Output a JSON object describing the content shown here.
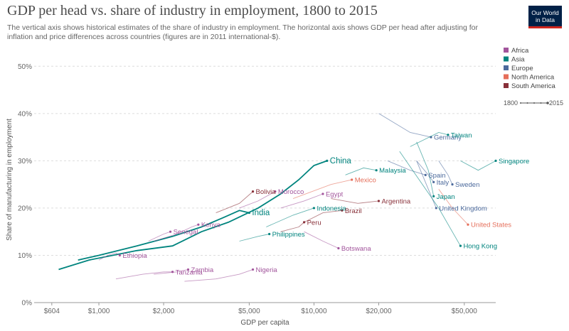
{
  "header": {
    "title": "GDP per head vs. share of industry in employment, 1800 to 2015",
    "subtitle": "The vertical axis shows historical estimates of the share of industry in employment. The horizontal axis shows GDP per head after adjusting for inflation and price differences across countries (figures are in 2011 international-$).",
    "logo_line1": "Our World",
    "logo_line2": "in Data"
  },
  "legend": {
    "items": [
      {
        "label": "Africa",
        "color": "#a2559c"
      },
      {
        "label": "Asia",
        "color": "#00847e"
      },
      {
        "label": "Europe",
        "color": "#4c6a9c"
      },
      {
        "label": "North America",
        "color": "#e56e5a"
      },
      {
        "label": "South America",
        "color": "#883039"
      }
    ],
    "time_start": "1800",
    "time_end": "2015"
  },
  "chart_data": {
    "type": "scatter",
    "xlabel": "GDP per capita",
    "ylabel": "Share of manufacturing in employment",
    "xscale": "log",
    "xlim": [
      500,
      70000
    ],
    "ylim": [
      0,
      52
    ],
    "xticks": [
      {
        "value": 604,
        "label": "$604"
      },
      {
        "value": 1000,
        "label": "$1,000"
      },
      {
        "value": 2000,
        "label": "$2,000"
      },
      {
        "value": 5000,
        "label": "$5,000"
      },
      {
        "value": 10000,
        "label": "$10,000"
      },
      {
        "value": 20000,
        "label": "$20,000"
      },
      {
        "value": 50000,
        "label": "$50,000"
      }
    ],
    "yticks": [
      {
        "value": 0,
        "label": "0%"
      },
      {
        "value": 10,
        "label": "10%"
      },
      {
        "value": 20,
        "label": "20%"
      },
      {
        "value": 30,
        "label": "30%"
      },
      {
        "value": 40,
        "label": "40%"
      },
      {
        "value": 50,
        "label": "50%"
      }
    ],
    "grid": "horizontal dashed",
    "legend_position": "right",
    "series": [
      {
        "name": "China",
        "region": "Asia",
        "values": [
          [
            650,
            7
          ],
          [
            900,
            9
          ],
          [
            1500,
            11
          ],
          [
            2200,
            12
          ],
          [
            3000,
            15
          ],
          [
            4000,
            17
          ],
          [
            5500,
            20
          ],
          [
            7000,
            23
          ],
          [
            8500,
            26
          ],
          [
            10000,
            29
          ],
          [
            11500,
            30
          ]
        ]
      },
      {
        "name": "India",
        "region": "Asia",
        "values": [
          [
            800,
            9
          ],
          [
            1000,
            10
          ],
          [
            1500,
            12
          ],
          [
            2200,
            14
          ],
          [
            3000,
            16
          ],
          [
            3800,
            18
          ],
          [
            4500,
            19.5
          ],
          [
            5000,
            19
          ]
        ]
      },
      {
        "name": "Ethiopia",
        "region": "Africa",
        "values": [
          [
            1000,
            9
          ],
          [
            1100,
            10
          ],
          [
            1200,
            10.5
          ],
          [
            1250,
            10
          ]
        ]
      },
      {
        "name": "Kenya",
        "region": "Africa",
        "values": [
          [
            1800,
            13
          ],
          [
            2300,
            14.5
          ],
          [
            2700,
            16
          ],
          [
            2900,
            16.5
          ]
        ]
      },
      {
        "name": "Senegal",
        "region": "Africa",
        "values": [
          [
            1700,
            13
          ],
          [
            2000,
            14.5
          ],
          [
            2150,
            15
          ]
        ]
      },
      {
        "name": "Tanzania",
        "region": "Africa",
        "values": [
          [
            1200,
            5
          ],
          [
            1600,
            6
          ],
          [
            2000,
            6.5
          ],
          [
            2200,
            6.5
          ]
        ]
      },
      {
        "name": "Zambia",
        "region": "Africa",
        "values": [
          [
            1800,
            6
          ],
          [
            2300,
            6.5
          ],
          [
            2600,
            7
          ]
        ]
      },
      {
        "name": "Nigeria",
        "region": "Africa",
        "values": [
          [
            2500,
            4.5
          ],
          [
            3500,
            5
          ],
          [
            4500,
            6
          ],
          [
            5200,
            7
          ]
        ]
      },
      {
        "name": "Bolivia",
        "region": "South America",
        "values": [
          [
            3500,
            19
          ],
          [
            4500,
            21
          ],
          [
            5200,
            23.5
          ]
        ]
      },
      {
        "name": "Morocco",
        "region": "Africa",
        "values": [
          [
            4500,
            20
          ],
          [
            5500,
            21.5
          ],
          [
            6600,
            23.5
          ]
        ]
      },
      {
        "name": "Egypt",
        "region": "Africa",
        "values": [
          [
            7000,
            20
          ],
          [
            9000,
            21.5
          ],
          [
            11000,
            23
          ]
        ]
      },
      {
        "name": "Mexico",
        "region": "North America",
        "values": [
          [
            8000,
            22
          ],
          [
            12000,
            25
          ],
          [
            15000,
            26
          ]
        ]
      },
      {
        "name": "Indonesia",
        "region": "Asia",
        "values": [
          [
            6000,
            16
          ],
          [
            8000,
            18.5
          ],
          [
            10000,
            20
          ]
        ]
      },
      {
        "name": "Peru",
        "region": "South America",
        "values": [
          [
            7000,
            15
          ],
          [
            8500,
            16
          ],
          [
            9000,
            17
          ]
        ]
      },
      {
        "name": "Brazil",
        "region": "South America",
        "values": [
          [
            9000,
            17
          ],
          [
            11000,
            19
          ],
          [
            13500,
            19.5
          ]
        ]
      },
      {
        "name": "Argentina",
        "region": "South America",
        "values": [
          [
            12000,
            22
          ],
          [
            16000,
            21
          ],
          [
            20000,
            21.5
          ]
        ]
      },
      {
        "name": "Philippines",
        "region": "Asia",
        "values": [
          [
            4500,
            13
          ],
          [
            5500,
            14
          ],
          [
            6200,
            14.5
          ]
        ]
      },
      {
        "name": "Botswana",
        "region": "Africa",
        "values": [
          [
            9000,
            15
          ],
          [
            11000,
            13
          ],
          [
            13000,
            11.5
          ]
        ]
      },
      {
        "name": "Malaysia",
        "region": "Asia",
        "values": [
          [
            14000,
            27
          ],
          [
            17000,
            28.5
          ],
          [
            19500,
            28
          ]
        ]
      },
      {
        "name": "Germany",
        "region": "Europe",
        "values": [
          [
            20000,
            40
          ],
          [
            28000,
            36
          ],
          [
            35000,
            35
          ]
        ]
      },
      {
        "name": "Taiwan",
        "region": "Asia",
        "values": [
          [
            28000,
            33
          ],
          [
            38000,
            36
          ],
          [
            42000,
            35.5
          ]
        ]
      },
      {
        "name": "Spain",
        "region": "Europe",
        "values": [
          [
            22000,
            30
          ],
          [
            28000,
            28
          ],
          [
            33000,
            27
          ]
        ]
      },
      {
        "name": "Singapore",
        "region": "Asia",
        "values": [
          [
            48000,
            30
          ],
          [
            58000,
            28
          ],
          [
            70000,
            30
          ]
        ]
      },
      {
        "name": "Italy",
        "region": "Europe",
        "values": [
          [
            30000,
            30
          ],
          [
            34000,
            27
          ],
          [
            36000,
            25.5
          ]
        ]
      },
      {
        "name": "Sweden",
        "region": "Europe",
        "values": [
          [
            38000,
            30
          ],
          [
            42000,
            27
          ],
          [
            44000,
            25
          ]
        ]
      },
      {
        "name": "Japan",
        "region": "Asia",
        "values": [
          [
            30000,
            34
          ],
          [
            34000,
            28
          ],
          [
            36000,
            22.5
          ]
        ]
      },
      {
        "name": "United Kingdom",
        "region": "Europe",
        "values": [
          [
            30000,
            30
          ],
          [
            34000,
            24
          ],
          [
            37000,
            20
          ]
        ]
      },
      {
        "name": "United States",
        "region": "North America",
        "values": [
          [
            38000,
            24
          ],
          [
            44000,
            20
          ],
          [
            52000,
            16.5
          ]
        ]
      },
      {
        "name": "Hong Kong",
        "region": "Asia",
        "values": [
          [
            25000,
            32
          ],
          [
            38000,
            20
          ],
          [
            48000,
            12
          ]
        ]
      }
    ],
    "labels": [
      {
        "text": "China",
        "color": "#00847e"
      },
      {
        "text": "India",
        "color": "#00847e"
      },
      {
        "text": "Ethiopia",
        "color": "#a2559c"
      },
      {
        "text": "Kenya",
        "color": "#a2559c"
      },
      {
        "text": "Senegal",
        "color": "#a2559c"
      },
      {
        "text": "Tanzania",
        "color": "#a2559c"
      },
      {
        "text": "Zambia",
        "color": "#a2559c"
      },
      {
        "text": "Nigeria",
        "color": "#a2559c"
      },
      {
        "text": "Bolivia",
        "color": "#883039"
      },
      {
        "text": "Morocco",
        "color": "#a2559c"
      },
      {
        "text": "Egypt",
        "color": "#a2559c"
      },
      {
        "text": "Mexico",
        "color": "#e56e5a"
      },
      {
        "text": "Indonesia",
        "color": "#00847e"
      },
      {
        "text": "Peru",
        "color": "#883039"
      },
      {
        "text": "Brazil",
        "color": "#883039"
      },
      {
        "text": "Argentina",
        "color": "#883039"
      },
      {
        "text": "Philippines",
        "color": "#00847e"
      },
      {
        "text": "Botswana",
        "color": "#a2559c"
      },
      {
        "text": "Malaysia",
        "color": "#00847e"
      },
      {
        "text": "Germany",
        "color": "#4c6a9c"
      },
      {
        "text": "Taiwan",
        "color": "#00847e"
      },
      {
        "text": "Spain",
        "color": "#4c6a9c"
      },
      {
        "text": "Singapore",
        "color": "#00847e"
      },
      {
        "text": "Italy",
        "color": "#4c6a9c"
      },
      {
        "text": "Sweden",
        "color": "#4c6a9c"
      },
      {
        "text": "Japan",
        "color": "#00847e"
      },
      {
        "text": "United Kingdom",
        "color": "#4c6a9c"
      },
      {
        "text": "United States",
        "color": "#e56e5a"
      },
      {
        "text": "Hong Kong",
        "color": "#00847e"
      }
    ]
  }
}
